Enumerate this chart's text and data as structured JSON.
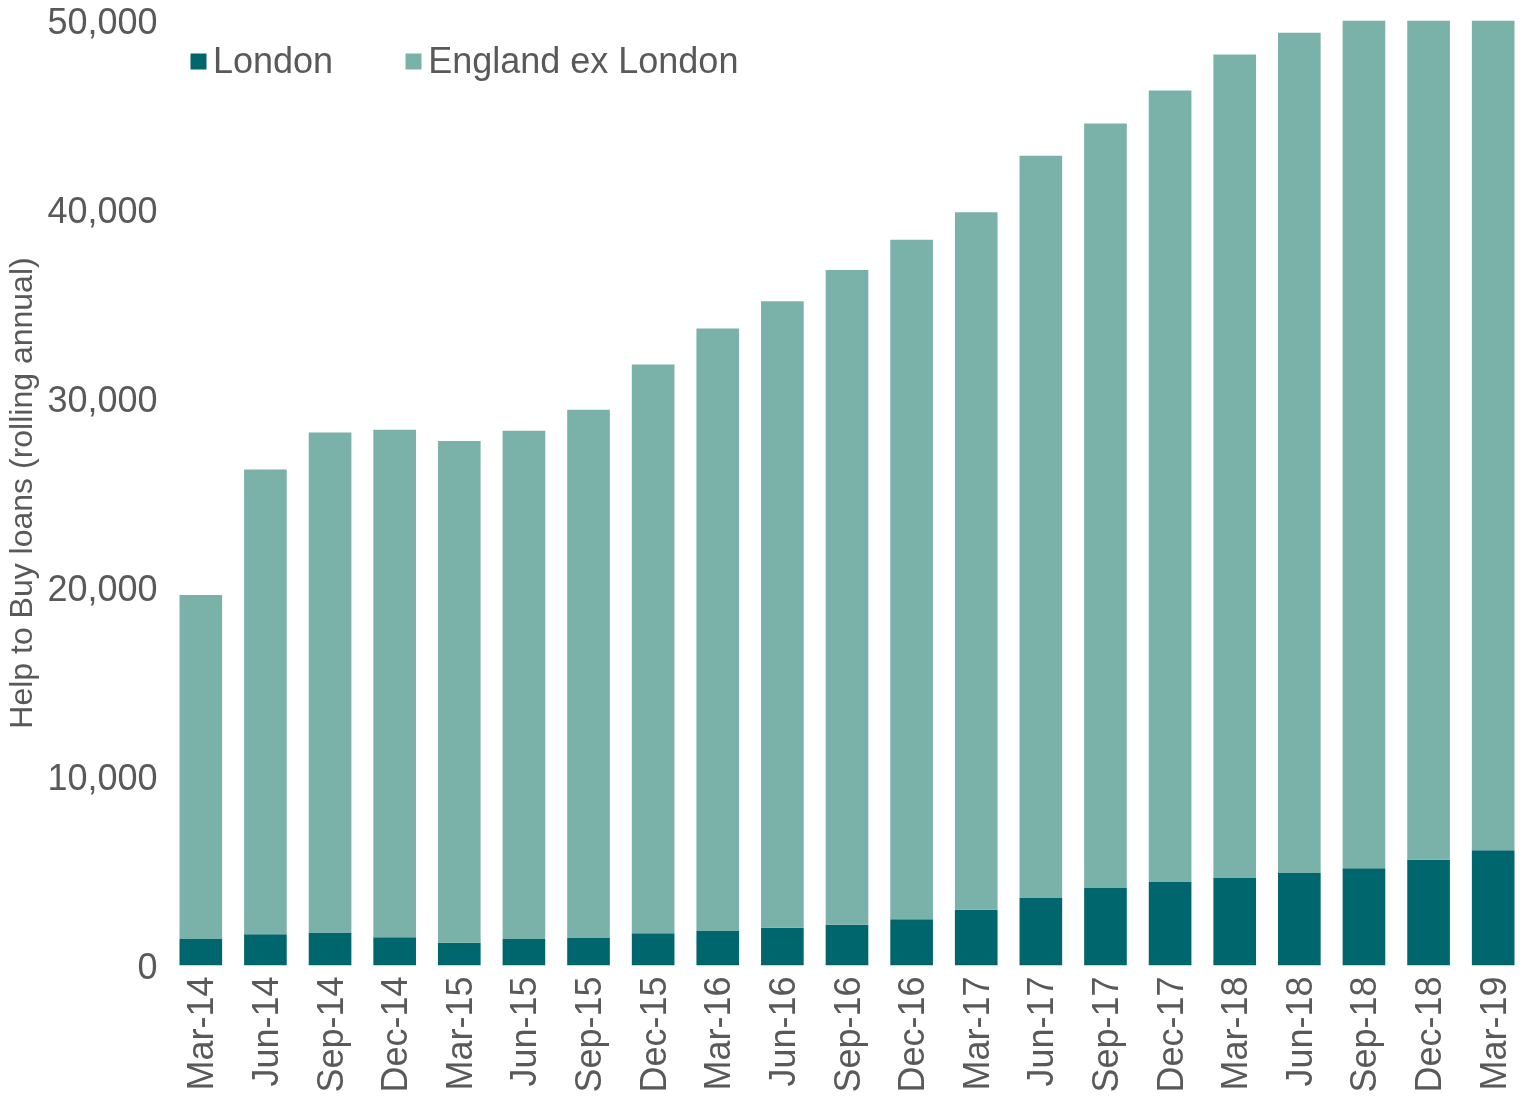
{
  "chart_data": {
    "type": "bar",
    "stacked": true,
    "ylabel": "Help to Buy loans (rolling annual)",
    "categories": [
      "Mar-14",
      "Jun-14",
      "Sep-14",
      "Dec-14",
      "Mar-15",
      "Jun-15",
      "Sep-15",
      "Dec-15",
      "Mar-16",
      "Jun-16",
      "Sep-16",
      "Dec-16",
      "Mar-17",
      "Jun-17",
      "Sep-17",
      "Dec-17",
      "Mar-18",
      "Jun-18",
      "Sep-18",
      "Dec-18",
      "Mar-19"
    ],
    "series": [
      {
        "name": "London",
        "color": "#00666e",
        "values": [
          1400,
          1650,
          1750,
          1500,
          1200,
          1400,
          1450,
          1700,
          1850,
          2000,
          2150,
          2450,
          2950,
          3600,
          4100,
          4450,
          4650,
          4900,
          5150,
          5600,
          6100
        ]
      },
      {
        "name": "England ex London",
        "color": "#7ab1a8",
        "values": [
          18200,
          24600,
          26450,
          26850,
          26550,
          26900,
          27950,
          30100,
          31850,
          33150,
          34650,
          35950,
          36900,
          39250,
          40450,
          41850,
          43550,
          44450,
          44850,
          44400,
          43900
        ]
      }
    ],
    "ylim": [
      0,
      50000
    ],
    "yticks": [
      {
        "value": 0,
        "label": "0"
      },
      {
        "value": 10000,
        "label": "10,000"
      },
      {
        "value": 20000,
        "label": "20,000"
      },
      {
        "value": 30000,
        "label": "30,000"
      },
      {
        "value": 40000,
        "label": "40,000"
      },
      {
        "value": 50000,
        "label": "50,000"
      }
    ],
    "legend": "top left",
    "grid": false
  }
}
